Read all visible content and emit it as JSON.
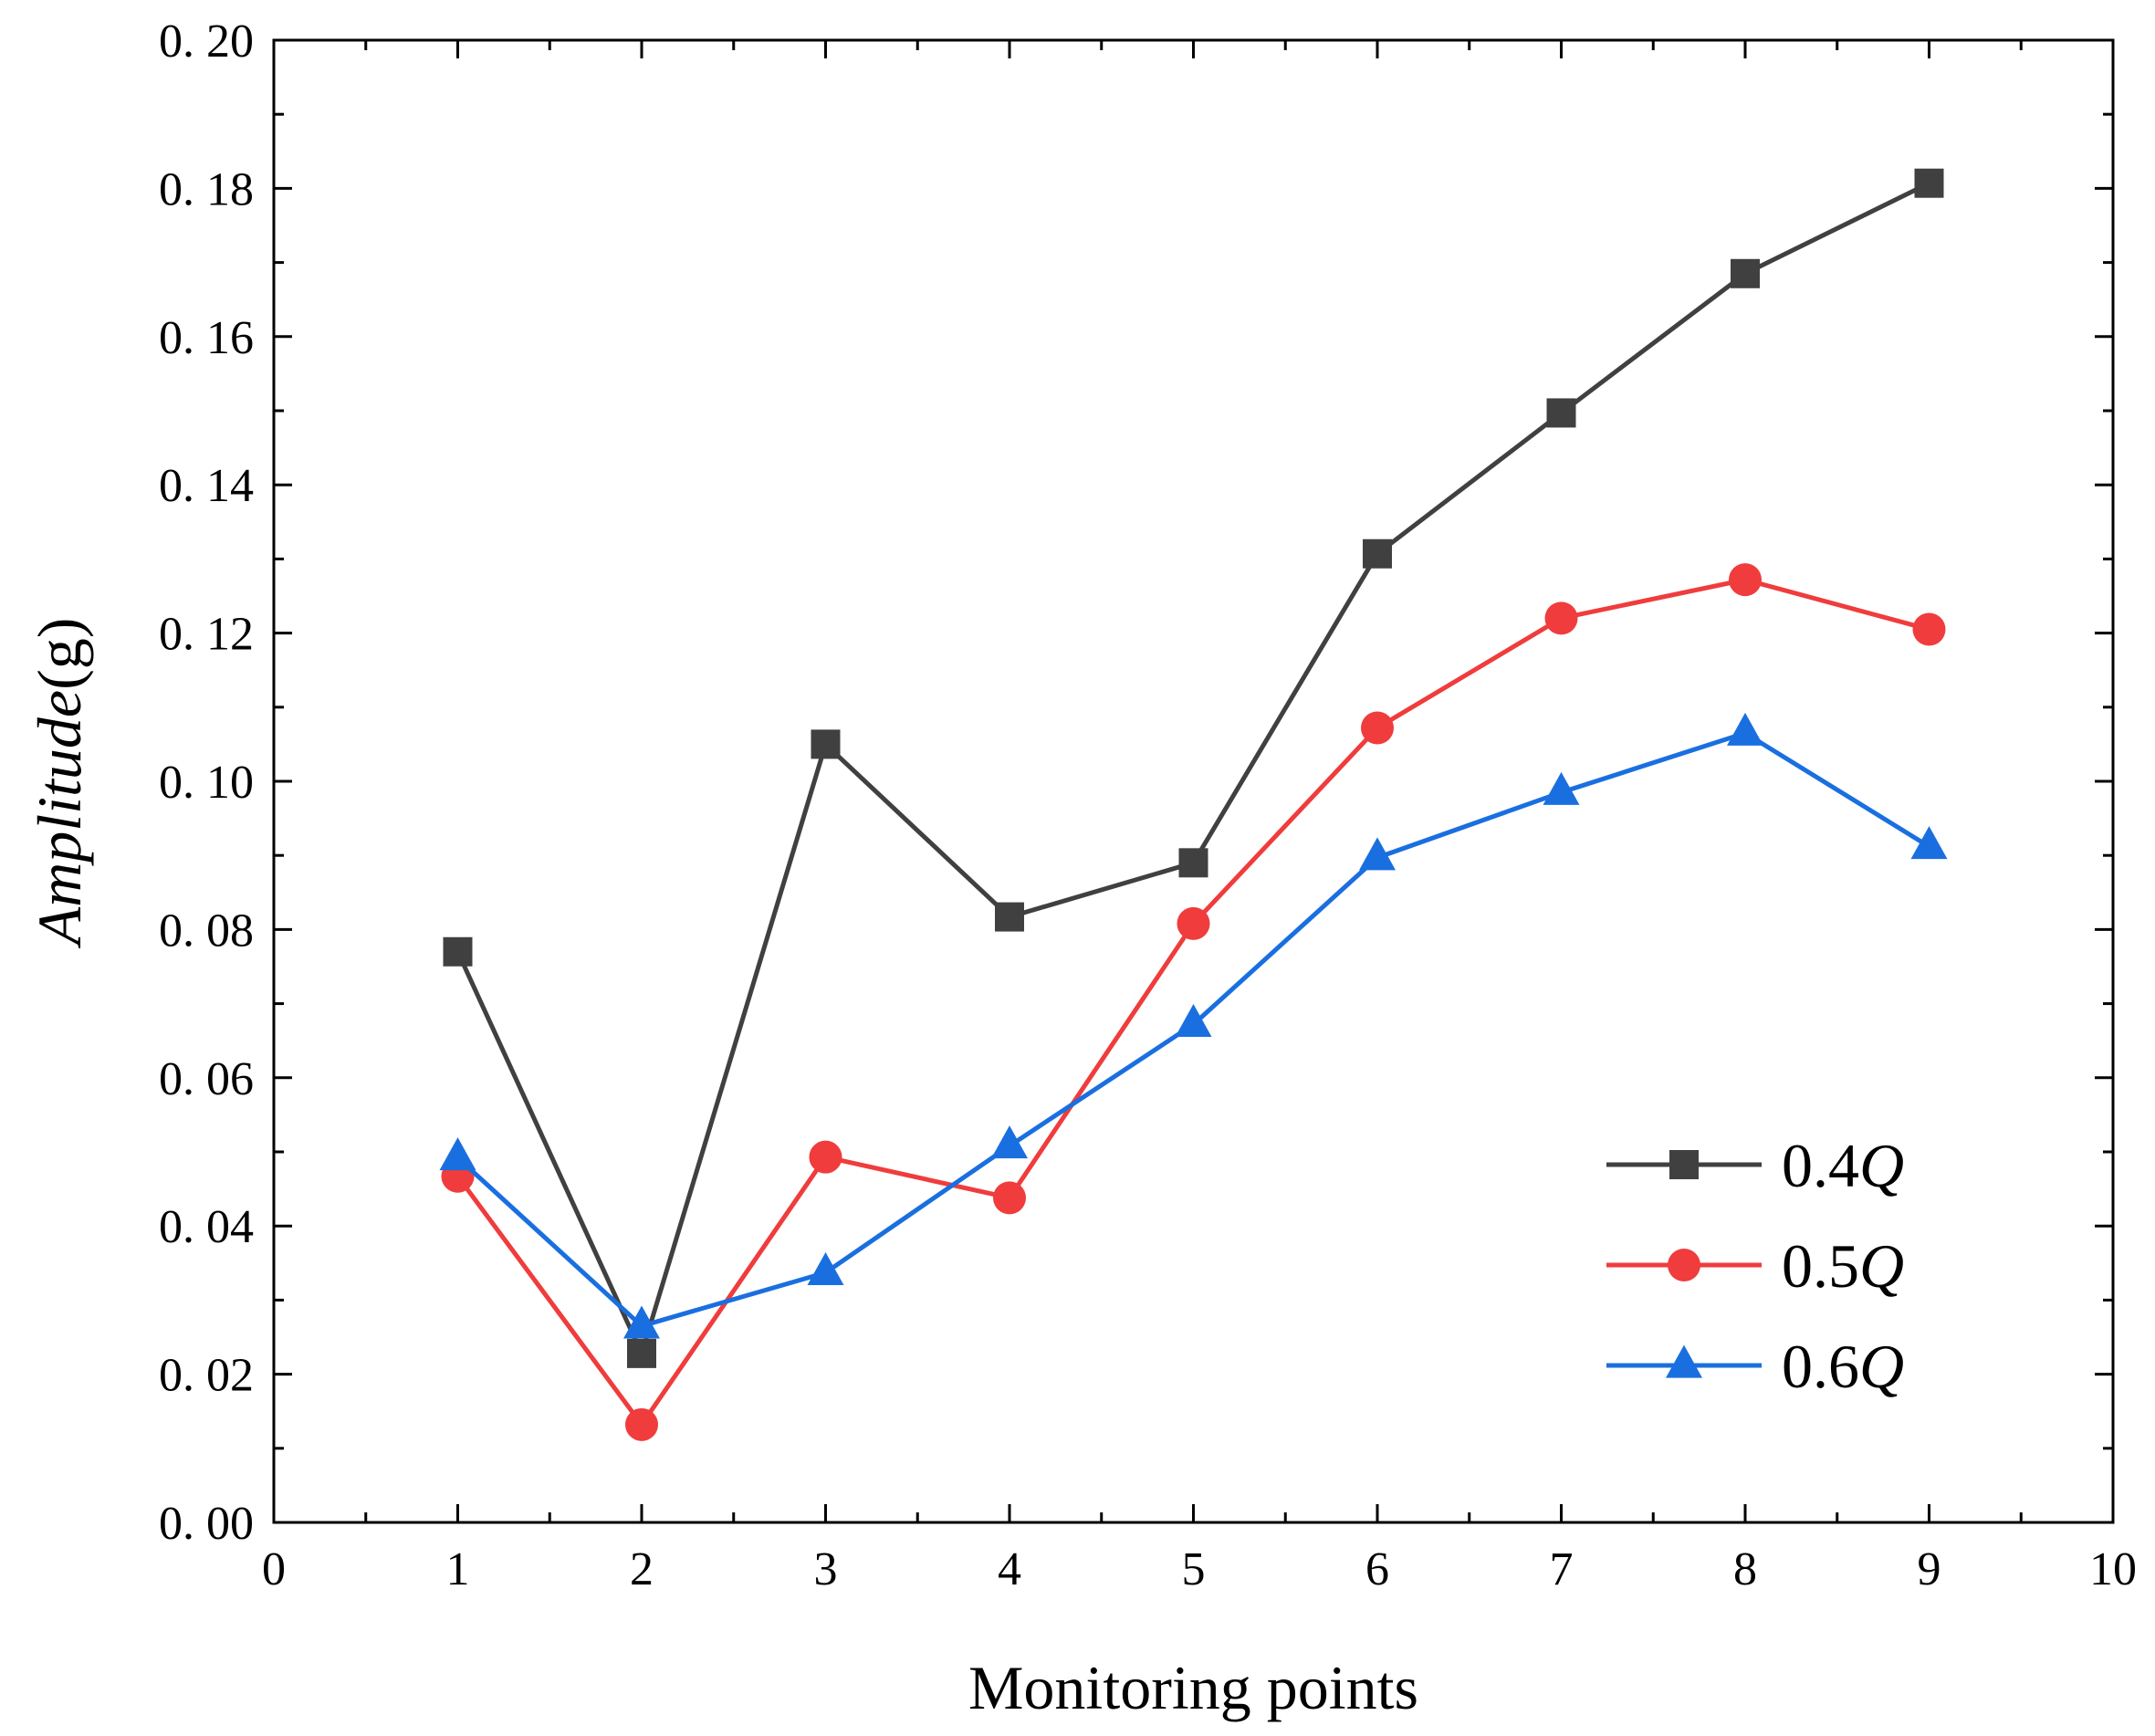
{
  "chart_data": {
    "type": "line",
    "title": "",
    "xlabel": "Monitoring points",
    "ylabel": {
      "italic": "Amplitude",
      "unit": "(g)"
    },
    "xlim": [
      0,
      10
    ],
    "ylim": [
      0,
      0.2
    ],
    "xticks": [
      0,
      1,
      2,
      3,
      4,
      5,
      6,
      7,
      8,
      9,
      10
    ],
    "xtick_labels": [
      "0",
      "1",
      "2",
      "3",
      "4",
      "5",
      "6",
      "7",
      "8",
      "9",
      "10"
    ],
    "yticks": [
      0,
      0.02,
      0.04,
      0.06,
      0.08,
      0.1,
      0.12,
      0.14,
      0.16,
      0.18,
      0.2
    ],
    "ytick_labels": [
      "0. 00",
      "0. 02",
      "0. 04",
      "0. 06",
      "0. 08",
      "0. 10",
      "0. 12",
      "0. 14",
      "0. 16",
      "0. 18",
      "0. 20"
    ],
    "grid": false,
    "legend_position": "bottom-right",
    "x": [
      1,
      2,
      3,
      4,
      5,
      6,
      7,
      8,
      9
    ],
    "series": [
      {
        "name": "0.4Q",
        "name_prefix": "0.4",
        "name_italic": "Q",
        "marker": "square",
        "color": "#404040",
        "values": [
          0.077,
          0.0228,
          0.105,
          0.0817,
          0.089,
          0.1307,
          0.1497,
          0.1685,
          0.1807
        ]
      },
      {
        "name": "0.5Q",
        "name_prefix": "0.5",
        "name_italic": "Q",
        "marker": "circle",
        "color": "#f03c3c",
        "values": [
          0.0467,
          0.0132,
          0.0493,
          0.0438,
          0.0808,
          0.1072,
          0.122,
          0.1272,
          0.1205
        ]
      },
      {
        "name": "0.6Q",
        "name_prefix": "0.6",
        "name_italic": "Q",
        "marker": "triangle",
        "color": "#1a6fe0",
        "values": [
          0.0492,
          0.0265,
          0.0337,
          0.0508,
          0.0672,
          0.0897,
          0.0985,
          0.1065,
          0.0912
        ]
      }
    ]
  }
}
